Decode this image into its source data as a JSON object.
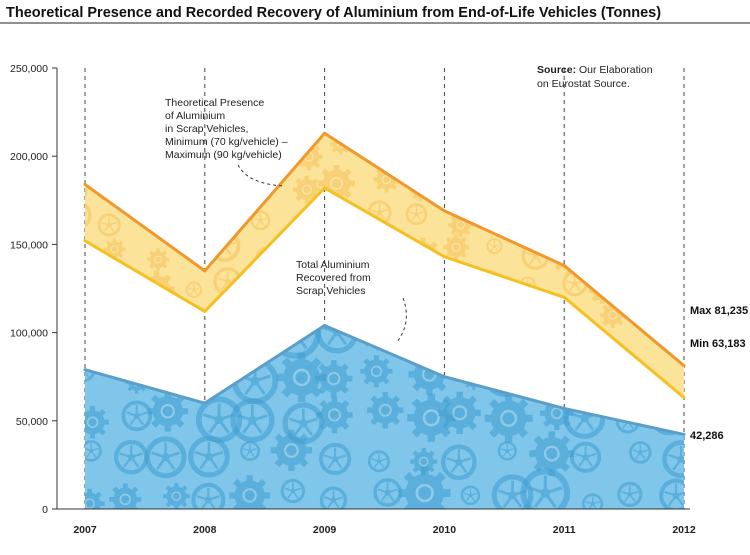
{
  "chart_data": {
    "type": "area",
    "title": "Theoretical Presence and Recorded Recovery of Aluminium from End-of-Life Vehicles (Tonnes)",
    "x": [
      "2007",
      "2008",
      "2009",
      "2010",
      "2011",
      "2012"
    ],
    "ylim": [
      0,
      250000
    ],
    "yticks": [
      "0",
      "50,000",
      "100,000",
      "150,000",
      "200,000",
      "250,000"
    ],
    "ytick_values": [
      0,
      50000,
      100000,
      150000,
      200000,
      250000
    ],
    "series": [
      {
        "key": "max",
        "values": [
          184000,
          135000,
          213000,
          169000,
          138000,
          81235
        ],
        "color": "#f0982c"
      },
      {
        "key": "min",
        "values": [
          152000,
          112000,
          182000,
          143000,
          120000,
          63183
        ],
        "color": "#f5c020"
      },
      {
        "key": "recovered",
        "values": [
          79000,
          60000,
          104000,
          75000,
          57000,
          42286
        ],
        "color": "#5b9fc8"
      }
    ],
    "band_fill": "#fce39a",
    "recovered_fill": "#7fc6ea",
    "end_labels": {
      "max": "Max 81,235",
      "min": "Min 63,183",
      "recovered": "42,286"
    },
    "annotations": {
      "band": [
        "Theoretical Presence",
        "of Aluminium",
        "in Scrap Vehicles,",
        "Minimum (70 kg/vehicle) –",
        "Maximum (90 kg/vehicle)"
      ],
      "recovered": [
        "Total Aluminium",
        "Recovered from",
        "Scrap Vehicles"
      ],
      "source_bold": "Source:",
      "source_rest": " Our Elaboration",
      "source_line2": "on Eurostat Source."
    },
    "grid": "vertical-dashed"
  }
}
